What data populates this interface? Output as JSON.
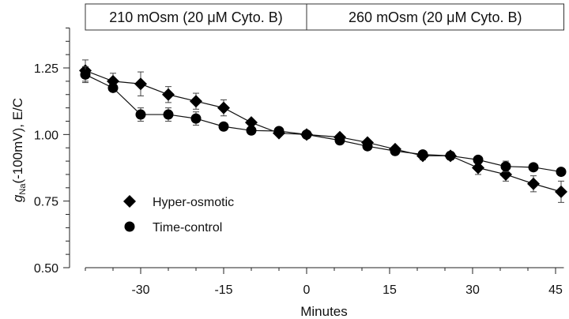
{
  "chart_data": {
    "type": "line",
    "title": "",
    "xlabel": "Minutes",
    "ylabel_main": "g",
    "ylabel_sub": "Na",
    "ylabel_rest": "(-100mV), E/C",
    "xlim": [
      -40,
      46.5
    ],
    "ylim": [
      0.5,
      1.4
    ],
    "xticks": [
      -30,
      -15,
      0,
      15,
      30,
      45
    ],
    "xtick_labels": [
      "-30",
      "-15",
      "0",
      "15",
      "30",
      "45"
    ],
    "yticks": [
      0.5,
      0.75,
      1.0,
      1.25
    ],
    "ytick_labels": [
      "0.50",
      "0.75",
      "1.00",
      "1.25"
    ],
    "grid": false,
    "legend_position": "lower-left",
    "condition_boxes": [
      {
        "label": "210 mOsm (20 μM Cyto. B)",
        "from": -40,
        "to": 0
      },
      {
        "label": "260 mOsm (20 μM Cyto. B)",
        "from": 0,
        "to": 46.5
      }
    ],
    "x": [
      -40,
      -35,
      -30,
      -25,
      -20,
      -15,
      -10,
      -5,
      0,
      6,
      11,
      16,
      21,
      26,
      31,
      36,
      41,
      46
    ],
    "series": [
      {
        "name": "Hyper-osmotic",
        "marker": "diamond",
        "color": "#000000",
        "values": [
          1.24,
          1.2,
          1.19,
          1.15,
          1.125,
          1.1,
          1.045,
          1.005,
          1.0,
          0.99,
          0.97,
          0.945,
          0.92,
          0.92,
          0.875,
          0.85,
          0.815,
          0.785
        ],
        "errors": [
          0.04,
          0.03,
          0.045,
          0.03,
          0.03,
          0.03,
          0.01,
          0.01,
          0.0,
          0.01,
          0.01,
          0.01,
          0.015,
          0.015,
          0.025,
          0.025,
          0.03,
          0.04
        ]
      },
      {
        "name": "Time-control",
        "marker": "circle",
        "color": "#000000",
        "values": [
          1.225,
          1.175,
          1.075,
          1.075,
          1.06,
          1.03,
          1.015,
          1.013,
          1.0,
          0.978,
          0.956,
          0.938,
          0.925,
          0.92,
          0.905,
          0.88,
          0.877,
          0.86
        ],
        "errors": [
          0.03,
          0.01,
          0.025,
          0.025,
          0.025,
          0.01,
          0.01,
          0.01,
          0.0,
          0.01,
          0.01,
          0.01,
          0.01,
          0.01,
          0.01,
          0.02,
          0.01,
          0.01
        ]
      }
    ]
  }
}
